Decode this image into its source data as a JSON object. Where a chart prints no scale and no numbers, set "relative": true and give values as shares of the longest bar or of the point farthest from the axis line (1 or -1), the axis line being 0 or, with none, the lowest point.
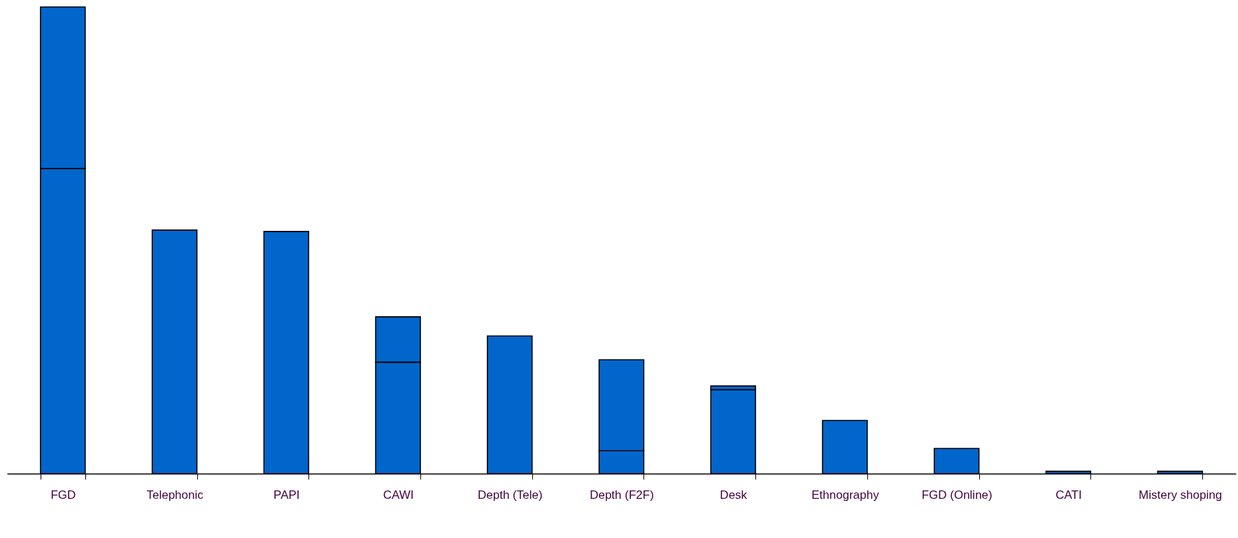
{
  "chart_data": {
    "type": "bar",
    "relative": true,
    "stacked": true,
    "categories": [
      "FGD",
      "Telephonic",
      "PAPI",
      "CAWI",
      "Depth (Tele)",
      "Depth (F2F)",
      "Desk",
      "Ethnography",
      "FGD (Online)",
      "CATI",
      "Mistery shoping"
    ],
    "series": [
      {
        "color": "#0066cc",
        "values": [
          0.654,
          0.522,
          0.519,
          0.239,
          0.295,
          0.049,
          0.18,
          0.114,
          0.054,
          0.005,
          0.005
        ]
      },
      {
        "color": "#0066cc",
        "values": [
          0.346,
          null,
          null,
          0.097,
          null,
          0.195,
          0.008,
          null,
          null,
          null,
          null
        ]
      }
    ]
  }
}
